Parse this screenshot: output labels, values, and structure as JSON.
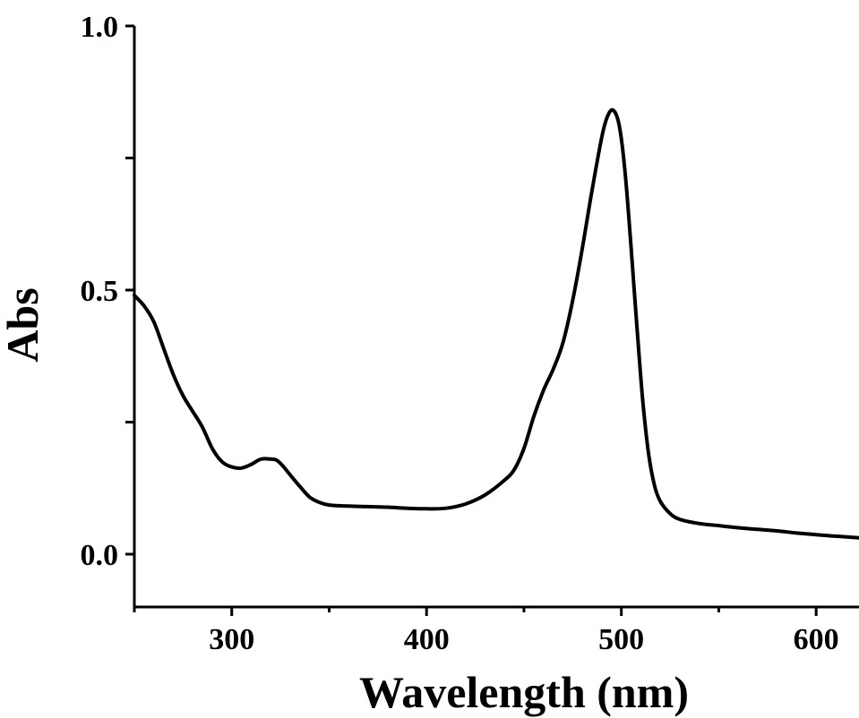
{
  "chart_data": {
    "type": "line",
    "title": "",
    "xlabel": "Wavelength (nm)",
    "ylabel": "Abs",
    "xlim": [
      250,
      622
    ],
    "ylim": [
      -0.1,
      1.0
    ],
    "x_ticks": [
      300,
      400,
      500,
      600
    ],
    "x_tick_labels": [
      "300",
      "400",
      "500",
      "600"
    ],
    "y_ticks": [
      0.0,
      0.25,
      0.5,
      0.75,
      1.0
    ],
    "y_tick_labels": [
      "0.0",
      "",
      "0.5",
      "",
      "1.0"
    ],
    "grid": false,
    "legend": "none",
    "series": [
      {
        "color": "#000000",
        "x": [
          250,
          255,
          260,
          265,
          270,
          275,
          280,
          285,
          290,
          295,
          300,
          305,
          310,
          315,
          320,
          323,
          326,
          330,
          335,
          340,
          345,
          350,
          360,
          370,
          380,
          390,
          400,
          410,
          420,
          430,
          440,
          445,
          450,
          455,
          460,
          465,
          470,
          475,
          480,
          485,
          490,
          493,
          496,
          499,
          502,
          505,
          508,
          511,
          514,
          517,
          520,
          525,
          530,
          540,
          550,
          560,
          570,
          580,
          590,
          600,
          610,
          622
        ],
        "y": [
          0.49,
          0.47,
          0.44,
          0.39,
          0.34,
          0.3,
          0.27,
          0.24,
          0.2,
          0.175,
          0.165,
          0.163,
          0.17,
          0.18,
          0.18,
          0.178,
          0.168,
          0.15,
          0.128,
          0.108,
          0.098,
          0.093,
          0.091,
          0.09,
          0.089,
          0.087,
          0.086,
          0.087,
          0.095,
          0.112,
          0.14,
          0.16,
          0.2,
          0.26,
          0.31,
          0.35,
          0.4,
          0.48,
          0.58,
          0.69,
          0.79,
          0.83,
          0.84,
          0.81,
          0.72,
          0.58,
          0.43,
          0.29,
          0.19,
          0.13,
          0.1,
          0.077,
          0.066,
          0.058,
          0.054,
          0.05,
          0.047,
          0.044,
          0.04,
          0.037,
          0.034,
          0.031
        ]
      }
    ]
  }
}
